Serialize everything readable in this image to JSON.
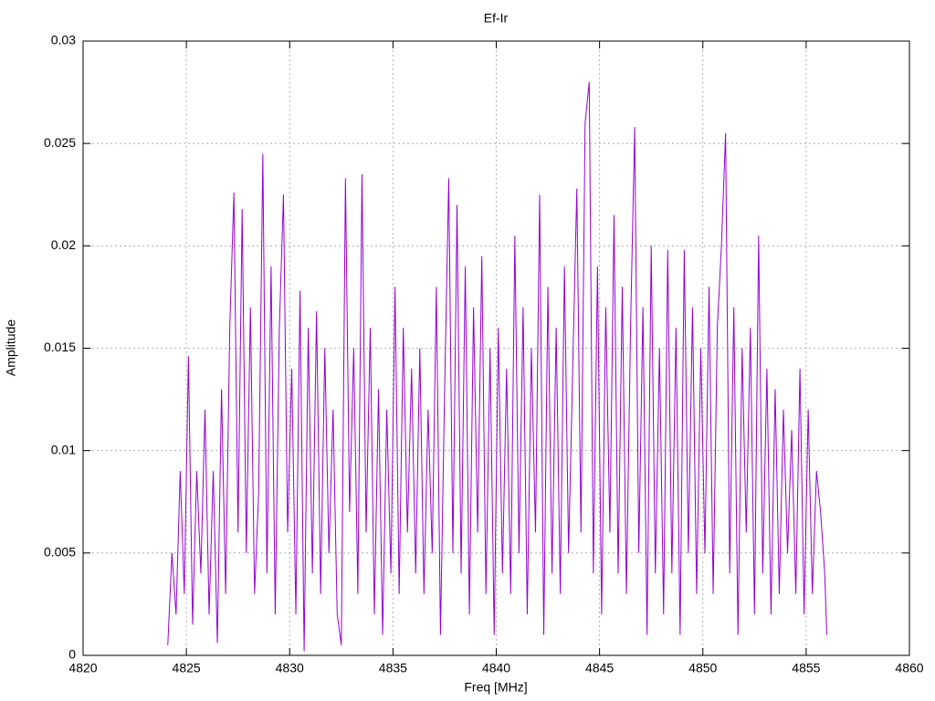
{
  "chart_data": {
    "type": "line",
    "title": "Ef-Ir",
    "x_label": "Freq [MHz]",
    "y_label": "Amplitude",
    "x": [
      4824.1,
      4824.3,
      4824.5,
      4824.7,
      4824.9,
      4825.1,
      4825.3,
      4825.5,
      4825.7,
      4825.9,
      4826.1,
      4826.3,
      4826.5,
      4826.7,
      4826.9,
      4827.1,
      4827.3,
      4827.5,
      4827.7,
      4827.9,
      4828.1,
      4828.3,
      4828.5,
      4828.7,
      4828.9,
      4829.1,
      4829.3,
      4829.5,
      4829.7,
      4829.9,
      4830.1,
      4830.3,
      4830.5,
      4830.7,
      4830.9,
      4831.1,
      4831.3,
      4831.5,
      4831.7,
      4831.9,
      4832.1,
      4832.3,
      4832.5,
      4832.7,
      4832.9,
      4833.1,
      4833.3,
      4833.5,
      4833.7,
      4833.9,
      4834.1,
      4834.3,
      4834.5,
      4834.7,
      4834.9,
      4835.1,
      4835.3,
      4835.5,
      4835.7,
      4835.9,
      4836.1,
      4836.3,
      4836.5,
      4836.7,
      4836.9,
      4837.1,
      4837.3,
      4837.5,
      4837.7,
      4837.9,
      4838.1,
      4838.3,
      4838.5,
      4838.7,
      4838.9,
      4839.1,
      4839.3,
      4839.5,
      4839.7,
      4839.9,
      4840.1,
      4840.3,
      4840.5,
      4840.7,
      4840.9,
      4841.1,
      4841.3,
      4841.5,
      4841.7,
      4841.9,
      4842.1,
      4842.3,
      4842.5,
      4842.7,
      4842.9,
      4843.1,
      4843.3,
      4843.5,
      4843.7,
      4843.9,
      4844.1,
      4844.3,
      4844.5,
      4844.7,
      4844.9,
      4845.1,
      4845.3,
      4845.5,
      4845.7,
      4845.9,
      4846.1,
      4846.3,
      4846.5,
      4846.7,
      4846.9,
      4847.1,
      4847.3,
      4847.5,
      4847.7,
      4847.9,
      4848.1,
      4848.3,
      4848.5,
      4848.7,
      4848.9,
      4849.1,
      4849.3,
      4849.5,
      4849.7,
      4849.9,
      4850.1,
      4850.3,
      4850.5,
      4850.7,
      4850.9,
      4851.1,
      4851.3,
      4851.5,
      4851.7,
      4851.9,
      4852.1,
      4852.3,
      4852.5,
      4852.7,
      4852.9,
      4853.1,
      4853.3,
      4853.5,
      4853.7,
      4853.9,
      4854.1,
      4854.3,
      4854.5,
      4854.7,
      4854.9,
      4855.1,
      4855.3,
      4855.5,
      4855.7,
      4855.9,
      4856.0
    ],
    "values": [
      0.0005,
      0.005,
      0.002,
      0.009,
      0.003,
      0.0146,
      0.0015,
      0.009,
      0.004,
      0.012,
      0.002,
      0.009,
      0.0006,
      0.013,
      0.003,
      0.016,
      0.0226,
      0.006,
      0.0218,
      0.005,
      0.017,
      0.003,
      0.008,
      0.0245,
      0.004,
      0.019,
      0.002,
      0.016,
      0.0225,
      0.006,
      0.014,
      0.002,
      0.0178,
      0.0002,
      0.016,
      0.004,
      0.0168,
      0.003,
      0.015,
      0.005,
      0.012,
      0.002,
      0.0005,
      0.0233,
      0.007,
      0.015,
      0.003,
      0.0235,
      0.006,
      0.016,
      0.002,
      0.013,
      0.001,
      0.012,
      0.004,
      0.018,
      0.003,
      0.016,
      0.006,
      0.014,
      0.004,
      0.015,
      0.003,
      0.012,
      0.005,
      0.018,
      0.001,
      0.013,
      0.0233,
      0.005,
      0.022,
      0.004,
      0.019,
      0.002,
      0.017,
      0.006,
      0.0195,
      0.003,
      0.015,
      0.001,
      0.016,
      0.004,
      0.014,
      0.003,
      0.0205,
      0.005,
      0.017,
      0.002,
      0.015,
      0.006,
      0.0225,
      0.001,
      0.018,
      0.004,
      0.016,
      0.003,
      0.019,
      0.005,
      0.014,
      0.0228,
      0.006,
      0.026,
      0.028,
      0.004,
      0.019,
      0.002,
      0.017,
      0.006,
      0.0215,
      0.004,
      0.018,
      0.003,
      0.016,
      0.0258,
      0.005,
      0.017,
      0.001,
      0.02,
      0.004,
      0.015,
      0.002,
      0.0198,
      0.004,
      0.016,
      0.001,
      0.0198,
      0.005,
      0.017,
      0.003,
      0.015,
      0.005,
      0.018,
      0.003,
      0.016,
      0.02,
      0.0255,
      0.004,
      0.017,
      0.001,
      0.015,
      0.006,
      0.016,
      0.002,
      0.0205,
      0.004,
      0.014,
      0.002,
      0.013,
      0.003,
      0.012,
      0.005,
      0.011,
      0.003,
      0.014,
      0.002,
      0.012,
      0.003,
      0.009,
      0.007,
      0.004,
      0.001
    ],
    "color": "#9400d3",
    "xlim": [
      4820,
      4860
    ],
    "xticks": [
      4820,
      4825,
      4830,
      4835,
      4840,
      4845,
      4850,
      4855,
      4860
    ],
    "ylim": [
      0,
      0.03
    ],
    "yticks": [
      0,
      0.005,
      0.01,
      0.015,
      0.02,
      0.025,
      0.03
    ],
    "grid": true
  }
}
